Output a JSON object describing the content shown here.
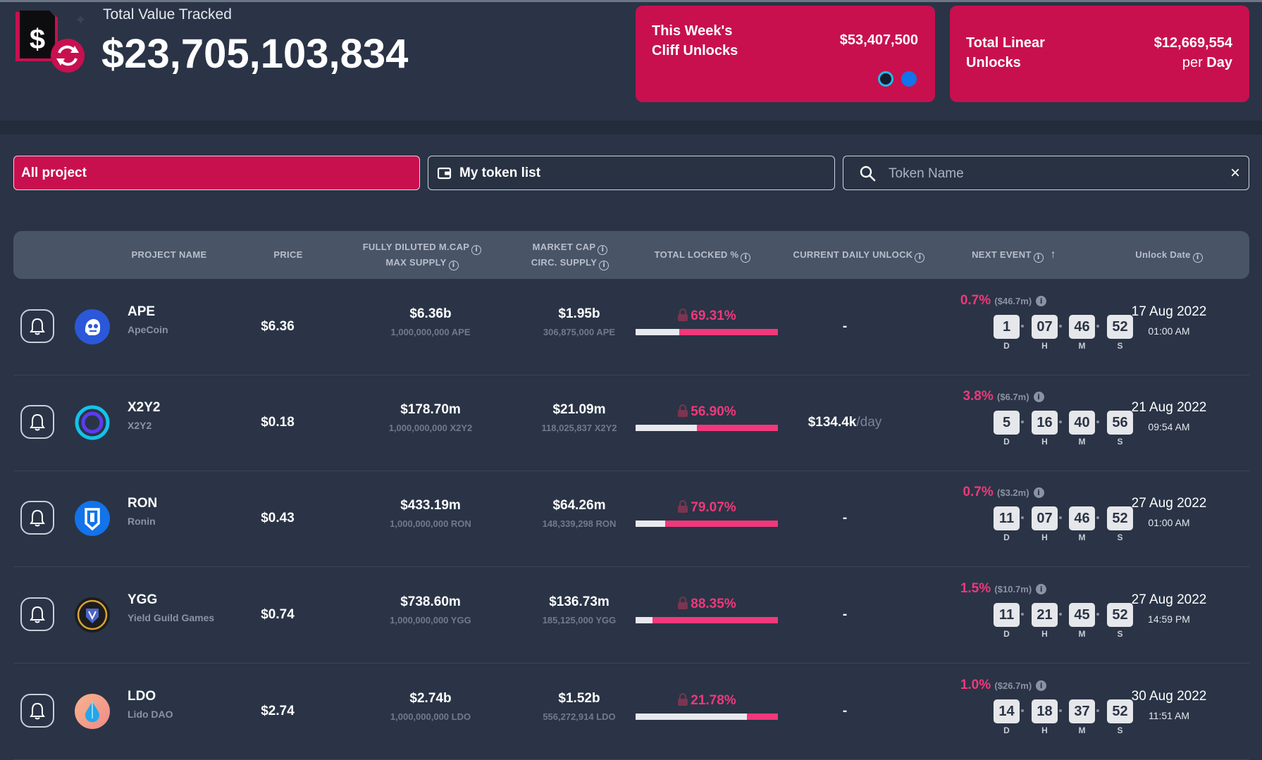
{
  "header": {
    "label": "Total Value Tracked",
    "value": "$23,705,103,834"
  },
  "cards": {
    "cliff": {
      "title_line1": "This Week's",
      "title_line2": "Cliff Unlocks",
      "value": "$53,407,500"
    },
    "linear": {
      "title_line1": "Total Linear",
      "title_line2": "Unlocks",
      "value": "$12,669,554",
      "per": "per",
      "unit": "Day"
    }
  },
  "filters": {
    "all_label": "All project",
    "list_label": "My token list",
    "search_placeholder": "Token Name",
    "clear": "×"
  },
  "table": {
    "headers": {
      "project": "PROJECT NAME",
      "price": "PRICE",
      "fdv_line1": "FULLY DILUTED M.CAP",
      "fdv_line2": "MAX SUPPLY",
      "mcap_line1": "MARKET CAP",
      "mcap_line2": "CIRC. SUPPLY",
      "locked": "TOTAL LOCKED %",
      "daily": "CURRENT DAILY UNLOCK",
      "next": "NEXT EVENT",
      "date": "Unlock Date"
    },
    "countdown_labels": {
      "d": "D",
      "h": "H",
      "m": "M",
      "s": "S"
    },
    "rows": [
      {
        "symbol": "APE",
        "name": "ApeCoin",
        "price": "$6.36",
        "fdv": "$6.36b",
        "max_supply": "1,000,000,000 APE",
        "mcap": "$1.95b",
        "circ_supply": "306,875,000 APE",
        "locked": "69.31%",
        "locked_fraction": 0.6931,
        "daily": "-",
        "daily_unit": "",
        "event_pct": "0.7%",
        "event_usd": "($46.7m)",
        "d": "1",
        "h": "07",
        "m": "46",
        "s": "52",
        "date": "17 Aug 2022",
        "time": "01:00 AM",
        "icon_color": "#2b57d9"
      },
      {
        "symbol": "X2Y2",
        "name": "X2Y2",
        "price": "$0.18",
        "fdv": "$178.70m",
        "max_supply": "1,000,000,000 X2Y2",
        "mcap": "$21.09m",
        "circ_supply": "118,025,837 X2Y2",
        "locked": "56.90%",
        "locked_fraction": 0.569,
        "daily": "$134.4k",
        "daily_unit": "/day",
        "event_pct": "3.8%",
        "event_usd": "($6.7m)",
        "d": "5",
        "h": "16",
        "m": "40",
        "s": "56",
        "date": "21 Aug 2022",
        "time": "09:54 AM",
        "icon_color": "#16c1e8"
      },
      {
        "symbol": "RON",
        "name": "Ronin",
        "price": "$0.43",
        "fdv": "$433.19m",
        "max_supply": "1,000,000,000 RON",
        "mcap": "$64.26m",
        "circ_supply": "148,339,298 RON",
        "locked": "79.07%",
        "locked_fraction": 0.7907,
        "daily": "-",
        "daily_unit": "",
        "event_pct": "0.7%",
        "event_usd": "($3.2m)",
        "d": "11",
        "h": "07",
        "m": "46",
        "s": "52",
        "date": "27 Aug 2022",
        "time": "01:00 AM",
        "icon_color": "#1273ea"
      },
      {
        "symbol": "YGG",
        "name": "Yield Guild Games",
        "price": "$0.74",
        "fdv": "$738.60m",
        "max_supply": "1,000,000,000 YGG",
        "mcap": "$136.73m",
        "circ_supply": "185,125,000 YGG",
        "locked": "88.35%",
        "locked_fraction": 0.8835,
        "daily": "-",
        "daily_unit": "",
        "event_pct": "1.5%",
        "event_usd": "($10.7m)",
        "d": "11",
        "h": "21",
        "m": "45",
        "s": "52",
        "date": "27 Aug 2022",
        "time": "14:59 PM",
        "icon_color": "#1d1d1d"
      },
      {
        "symbol": "LDO",
        "name": "Lido DAO",
        "price": "$2.74",
        "fdv": "$2.74b",
        "max_supply": "1,000,000,000 LDO",
        "mcap": "$1.52b",
        "circ_supply": "556,272,914 LDO",
        "locked": "21.78%",
        "locked_fraction": 0.2178,
        "daily": "-",
        "daily_unit": "",
        "event_pct": "1.0%",
        "event_usd": "($26.7m)",
        "d": "14",
        "h": "18",
        "m": "37",
        "s": "52",
        "date": "30 Aug 2022",
        "time": "11:51 AM",
        "icon_color": "#f29d84"
      }
    ]
  },
  "colors": {
    "accent": "#c8104f",
    "pink": "#f0387a",
    "bg": "#2a3446"
  }
}
